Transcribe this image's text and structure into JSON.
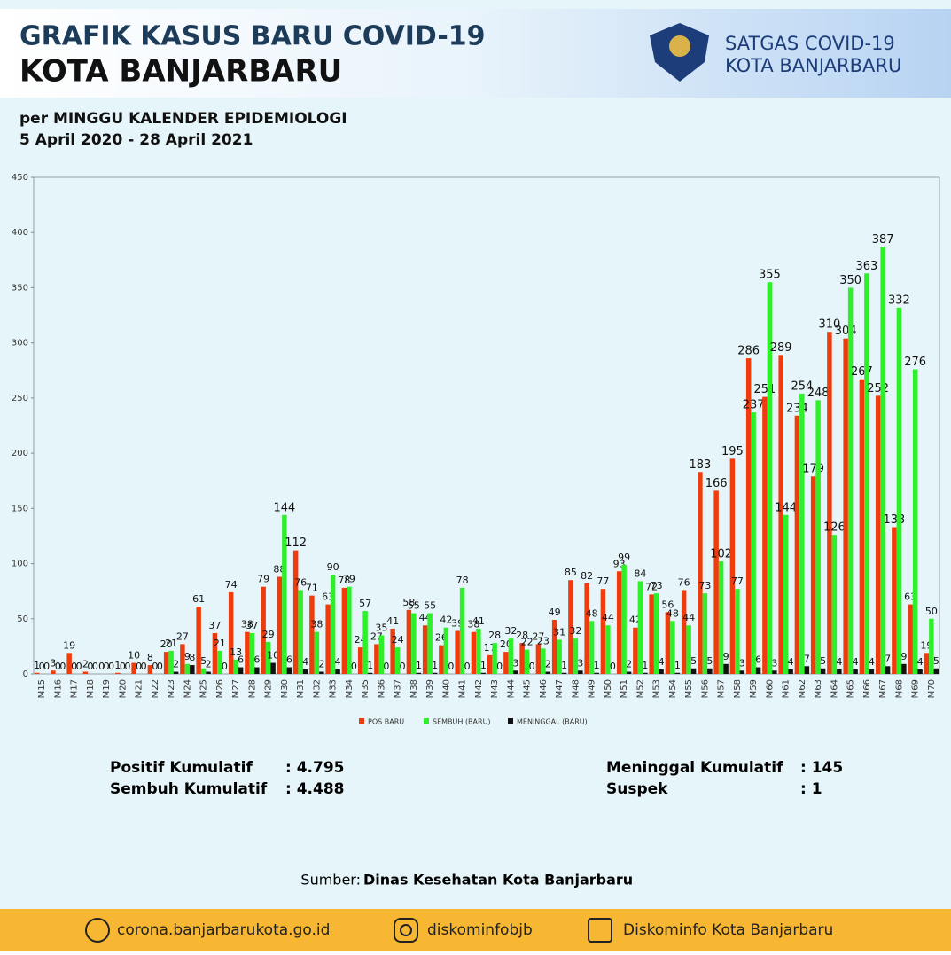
{
  "header": {
    "title_line1": "GRAFIK KASUS BARU COVID-19",
    "title_line2": "KOTA BANJARBARU",
    "org_line1": "SATGAS COVID-19",
    "org_line2": "KOTA BANJARBARU",
    "subtitle_line1": "per MINGGU KALENDER EPIDEMIOLOGI",
    "subtitle_line2": "5 April 2020 - 28 April 2021"
  },
  "chart_data": {
    "type": "bar",
    "categories": [
      "M15",
      "M16",
      "M17",
      "M18",
      "M19",
      "M20",
      "M21",
      "M22",
      "M23",
      "M24",
      "M25",
      "M26",
      "M27",
      "M28",
      "M29",
      "M30",
      "M31",
      "M32",
      "M33",
      "M34",
      "M35",
      "M36",
      "M37",
      "M38",
      "M39",
      "M40",
      "M41",
      "M42",
      "M43",
      "M44",
      "M45",
      "M46",
      "M47",
      "M48",
      "M49",
      "M50",
      "M51",
      "M52",
      "M53",
      "M54",
      "M55",
      "M56",
      "M57",
      "M58",
      "M59",
      "M60",
      "M61",
      "M62",
      "M63",
      "M64",
      "M65",
      "M66",
      "M67",
      "M68",
      "M69",
      "M70"
    ],
    "series": [
      {
        "name": "POS BARU",
        "color": "#f03c0c",
        "values": [
          1,
          3,
          19,
          2,
          0,
          1,
          10,
          8,
          20,
          27,
          61,
          37,
          74,
          38,
          79,
          88,
          112,
          71,
          63,
          78,
          24,
          27,
          41,
          58,
          44,
          26,
          39,
          38,
          17,
          20,
          28,
          27,
          49,
          85,
          82,
          77,
          93,
          42,
          72,
          56,
          76,
          183,
          166,
          195,
          286,
          251,
          289,
          234,
          179,
          310,
          304,
          267,
          252,
          133,
          63,
          19
        ]
      },
      {
        "name": "SEMBUH (BARU)",
        "color": "#2ef02a",
        "values": [
          0,
          0,
          0,
          0,
          0,
          0,
          0,
          0,
          21,
          9,
          5,
          21,
          13,
          37,
          29,
          144,
          76,
          38,
          90,
          79,
          57,
          35,
          24,
          55,
          55,
          42,
          78,
          41,
          28,
          32,
          22,
          23,
          31,
          32,
          48,
          44,
          99,
          84,
          73,
          48,
          44,
          73,
          102,
          77,
          237,
          355,
          144,
          254,
          248,
          126,
          350,
          363,
          387,
          332,
          276,
          50
        ]
      },
      {
        "name": "MENINGGAL (BARU)",
        "color": "#111111",
        "values": [
          0,
          0,
          0,
          0,
          0,
          0,
          0,
          0,
          2,
          8,
          2,
          0,
          6,
          6,
          10,
          6,
          4,
          2,
          4,
          0,
          1,
          0,
          0,
          1,
          1,
          0,
          0,
          1,
          0,
          3,
          0,
          2,
          1,
          3,
          1,
          0,
          2,
          1,
          4,
          1,
          5,
          5,
          9,
          3,
          6,
          3,
          4,
          7,
          5,
          4,
          4,
          4,
          7,
          9,
          4,
          5
        ]
      }
    ],
    "ylim": [
      0,
      450
    ],
    "yticks": [
      0,
      50,
      100,
      150,
      200,
      250,
      300,
      350,
      400,
      450
    ],
    "legend": "bottom"
  },
  "stats": {
    "positif_label": "Positif Kumulatif",
    "positif_value": ": 4.795",
    "sembuh_label": "Sembuh Kumulatif",
    "sembuh_value": ": 4.488",
    "meninggal_label": "Meninggal Kumulatif",
    "meninggal_value": ": 145",
    "suspek_label": "Suspek",
    "suspek_value": ": 1"
  },
  "source": {
    "label": "Sumber:",
    "value": "Dinas Kesehatan Kota Banjarbaru"
  },
  "footer": {
    "website": "corona.banjarbarukota.go.id",
    "instagram": "diskominfobjb",
    "facebook": "Diskominfo Kota Banjarbaru"
  }
}
